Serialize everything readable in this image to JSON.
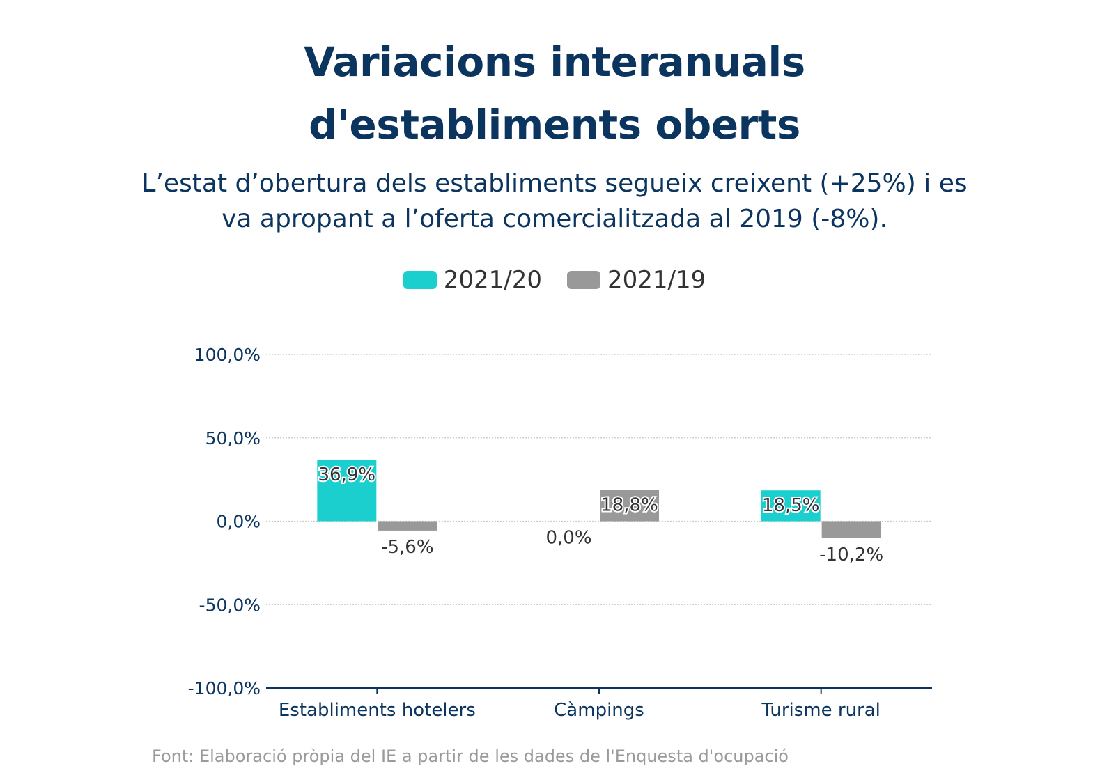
{
  "chart_data": {
    "type": "bar",
    "title": "Variacions interanuals d'establiments oberts",
    "subtitle": "L’estat d’obertura dels establiments segueix creixent (+25%) i es va apropant a l’oferta comercialitzada al 2019 (-8%).",
    "categories": [
      "Establiments hotelers",
      "Càmpings",
      "Turisme rural"
    ],
    "series": [
      {
        "name": "2021/20",
        "color": "#1ccfcf",
        "values": [
          36.9,
          0.0,
          18.5
        ],
        "labels": [
          "36,9%",
          "0,0%",
          "18,5%"
        ]
      },
      {
        "name": "2021/19",
        "color": "#999999",
        "values": [
          -5.6,
          18.8,
          -10.2
        ],
        "labels": [
          "-5,6%",
          "18,8%",
          "-10,2%"
        ]
      }
    ],
    "yticks": [
      100,
      50,
      0,
      -50,
      -100
    ],
    "ytick_labels": [
      "100,0%",
      "50,0%",
      "0,0%",
      "-50,0%",
      "-100,0%"
    ],
    "ylim": [
      -100,
      100
    ],
    "grid": true,
    "legend_position": "top-center",
    "xlabel": "",
    "ylabel": ""
  },
  "source_text": "Font: Elaboració pròpia del IE a partir de les dades de l'Enquesta d'ocupació"
}
